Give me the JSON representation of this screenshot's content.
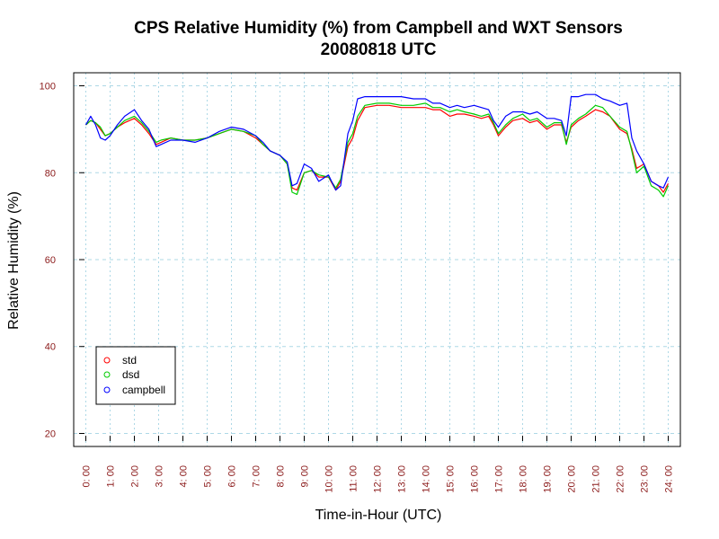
{
  "chart_data": {
    "type": "line",
    "title": "CPS Relative Humidity (%) from Campbell and WXT Sensors",
    "subtitle": "20080818  UTC",
    "xlabel": "Time-in-Hour (UTC)",
    "ylabel": "Relative Humidity (%)",
    "xlim": [
      -0.5,
      24.5
    ],
    "ylim": [
      17,
      103
    ],
    "x_ticks": [
      0,
      1,
      2,
      3,
      4,
      5,
      6,
      7,
      8,
      9,
      10,
      11,
      12,
      13,
      14,
      15,
      16,
      17,
      18,
      19,
      20,
      21,
      22,
      23,
      24
    ],
    "x_tick_labels": [
      "0: 00",
      "1: 00",
      "2: 00",
      "3: 00",
      "4: 00",
      "5: 00",
      "6: 00",
      "7: 00",
      "8: 00",
      "9: 00",
      "10: 00",
      "11: 00",
      "12: 00",
      "13: 00",
      "14: 00",
      "15: 00",
      "16: 00",
      "17: 00",
      "18: 00",
      "19: 00",
      "20: 00",
      "21: 00",
      "22: 00",
      "23: 00",
      "24: 00"
    ],
    "y_ticks": [
      20,
      40,
      60,
      80,
      100
    ],
    "y_tick_labels": [
      "20",
      "40",
      "60",
      "80",
      "100"
    ],
    "grid": true,
    "legend_position": "bottom-left",
    "colors": {
      "axis": "#000000",
      "tick_label": "#8b1a1a",
      "grid": "#add8e6",
      "std": "#ff0000",
      "dsd": "#00cc00",
      "campbell": "#0000ff"
    },
    "series": [
      {
        "name": "std",
        "color": "#ff0000",
        "x": [
          0,
          0.2,
          0.4,
          0.6,
          0.8,
          1.0,
          1.3,
          1.6,
          2.0,
          2.3,
          2.6,
          2.9,
          3.1,
          3.5,
          4.0,
          4.5,
          5.0,
          5.5,
          6.0,
          6.5,
          7.0,
          7.3,
          7.6,
          8.0,
          8.3,
          8.5,
          8.7,
          9.0,
          9.3,
          9.6,
          10.0,
          10.3,
          10.5,
          10.8,
          11.0,
          11.2,
          11.5,
          12.0,
          12.5,
          13.0,
          13.5,
          14.0,
          14.3,
          14.6,
          15.0,
          15.3,
          15.6,
          16.0,
          16.3,
          16.6,
          16.8,
          17.0,
          17.3,
          17.6,
          18.0,
          18.3,
          18.6,
          19.0,
          19.3,
          19.6,
          19.8,
          20.0,
          20.3,
          20.6,
          21.0,
          21.3,
          21.6,
          22.0,
          22.3,
          22.5,
          22.7,
          23.0,
          23.3,
          23.6,
          23.8,
          24.0
        ],
        "values": [
          91.0,
          92.0,
          91.5,
          90.0,
          88.5,
          89.0,
          90.5,
          91.5,
          92.5,
          91.0,
          89.0,
          86.5,
          87.0,
          88.0,
          87.5,
          87.5,
          88.0,
          89.0,
          90.0,
          89.5,
          88.0,
          86.5,
          85.0,
          84.0,
          82.0,
          76.5,
          76.0,
          80.0,
          80.5,
          79.0,
          79.0,
          76.0,
          78.0,
          86.0,
          88.0,
          92.0,
          95.0,
          95.5,
          95.5,
          95.0,
          95.0,
          95.0,
          94.5,
          94.5,
          93.0,
          93.5,
          93.5,
          93.0,
          92.5,
          93.0,
          91.0,
          88.5,
          90.5,
          92.0,
          92.5,
          91.5,
          92.0,
          90.0,
          91.0,
          91.0,
          87.0,
          90.5,
          92.0,
          93.0,
          94.5,
          94.0,
          93.0,
          90.0,
          89.0,
          85.5,
          81.0,
          82.0,
          78.0,
          77.0,
          75.5,
          77.5
        ]
      },
      {
        "name": "dsd",
        "color": "#00cc00",
        "x": [
          0,
          0.2,
          0.4,
          0.6,
          0.8,
          1.0,
          1.3,
          1.6,
          2.0,
          2.3,
          2.6,
          2.9,
          3.1,
          3.5,
          4.0,
          4.5,
          5.0,
          5.5,
          6.0,
          6.5,
          7.0,
          7.3,
          7.6,
          8.0,
          8.3,
          8.5,
          8.7,
          9.0,
          9.3,
          9.6,
          10.0,
          10.3,
          10.5,
          10.8,
          11.0,
          11.2,
          11.5,
          12.0,
          12.5,
          13.0,
          13.5,
          14.0,
          14.3,
          14.6,
          15.0,
          15.3,
          15.6,
          16.0,
          16.3,
          16.6,
          16.8,
          17.0,
          17.3,
          17.6,
          18.0,
          18.3,
          18.6,
          19.0,
          19.3,
          19.6,
          19.8,
          20.0,
          20.3,
          20.6,
          21.0,
          21.3,
          21.6,
          22.0,
          22.3,
          22.5,
          22.7,
          23.0,
          23.3,
          23.6,
          23.8,
          24.0
        ],
        "values": [
          91.0,
          92.0,
          91.5,
          90.5,
          88.5,
          89.0,
          90.5,
          92.0,
          93.0,
          91.5,
          89.5,
          87.0,
          87.5,
          88.0,
          87.5,
          87.5,
          88.0,
          89.0,
          90.0,
          89.5,
          88.5,
          86.5,
          85.0,
          84.0,
          82.0,
          75.5,
          75.0,
          80.0,
          80.5,
          79.5,
          79.0,
          76.5,
          78.5,
          87.0,
          89.0,
          93.0,
          95.5,
          96.0,
          96.0,
          95.5,
          95.5,
          96.0,
          95.0,
          95.0,
          94.0,
          94.5,
          94.0,
          93.5,
          93.0,
          93.5,
          91.5,
          89.0,
          91.0,
          92.5,
          93.5,
          92.0,
          92.5,
          90.5,
          91.5,
          91.5,
          86.5,
          91.0,
          92.5,
          93.5,
          95.5,
          95.0,
          93.0,
          90.5,
          89.5,
          85.0,
          80.0,
          81.5,
          77.0,
          76.0,
          74.5,
          77.0
        ]
      },
      {
        "name": "campbell",
        "color": "#0000ff",
        "x": [
          0,
          0.2,
          0.4,
          0.6,
          0.8,
          1.0,
          1.3,
          1.6,
          2.0,
          2.3,
          2.6,
          2.9,
          3.1,
          3.5,
          4.0,
          4.5,
          5.0,
          5.5,
          6.0,
          6.5,
          7.0,
          7.3,
          7.6,
          8.0,
          8.3,
          8.5,
          8.7,
          9.0,
          9.3,
          9.6,
          10.0,
          10.3,
          10.5,
          10.8,
          11.0,
          11.2,
          11.5,
          12.0,
          12.5,
          13.0,
          13.5,
          14.0,
          14.3,
          14.6,
          15.0,
          15.3,
          15.6,
          16.0,
          16.3,
          16.6,
          16.8,
          17.0,
          17.3,
          17.6,
          18.0,
          18.3,
          18.6,
          19.0,
          19.3,
          19.6,
          19.8,
          20.0,
          20.3,
          20.6,
          21.0,
          21.3,
          21.6,
          22.0,
          22.3,
          22.5,
          22.7,
          23.0,
          23.3,
          23.6,
          23.8,
          24.0
        ],
        "values": [
          91.0,
          93.0,
          91.0,
          88.0,
          87.5,
          88.5,
          91.0,
          93.0,
          94.5,
          92.0,
          90.0,
          86.0,
          86.5,
          87.5,
          87.5,
          87.0,
          88.0,
          89.5,
          90.5,
          90.0,
          88.5,
          87.0,
          85.0,
          84.0,
          82.5,
          77.0,
          77.5,
          82.0,
          81.0,
          78.0,
          79.5,
          76.0,
          77.0,
          89.0,
          92.0,
          97.0,
          97.5,
          97.5,
          97.5,
          97.5,
          97.0,
          97.0,
          96.0,
          96.0,
          95.0,
          95.5,
          95.0,
          95.5,
          95.0,
          94.5,
          92.0,
          90.5,
          93.0,
          94.0,
          94.0,
          93.5,
          94.0,
          92.5,
          92.5,
          92.0,
          88.5,
          97.5,
          97.5,
          98.0,
          98.0,
          97.0,
          96.5,
          95.5,
          96.0,
          88.0,
          85.0,
          82.0,
          78.0,
          77.0,
          76.5,
          79.0
        ]
      }
    ],
    "legend": [
      {
        "label": "std",
        "color": "#ff0000"
      },
      {
        "label": "dsd",
        "color": "#00cc00"
      },
      {
        "label": "campbell",
        "color": "#0000ff"
      }
    ]
  }
}
